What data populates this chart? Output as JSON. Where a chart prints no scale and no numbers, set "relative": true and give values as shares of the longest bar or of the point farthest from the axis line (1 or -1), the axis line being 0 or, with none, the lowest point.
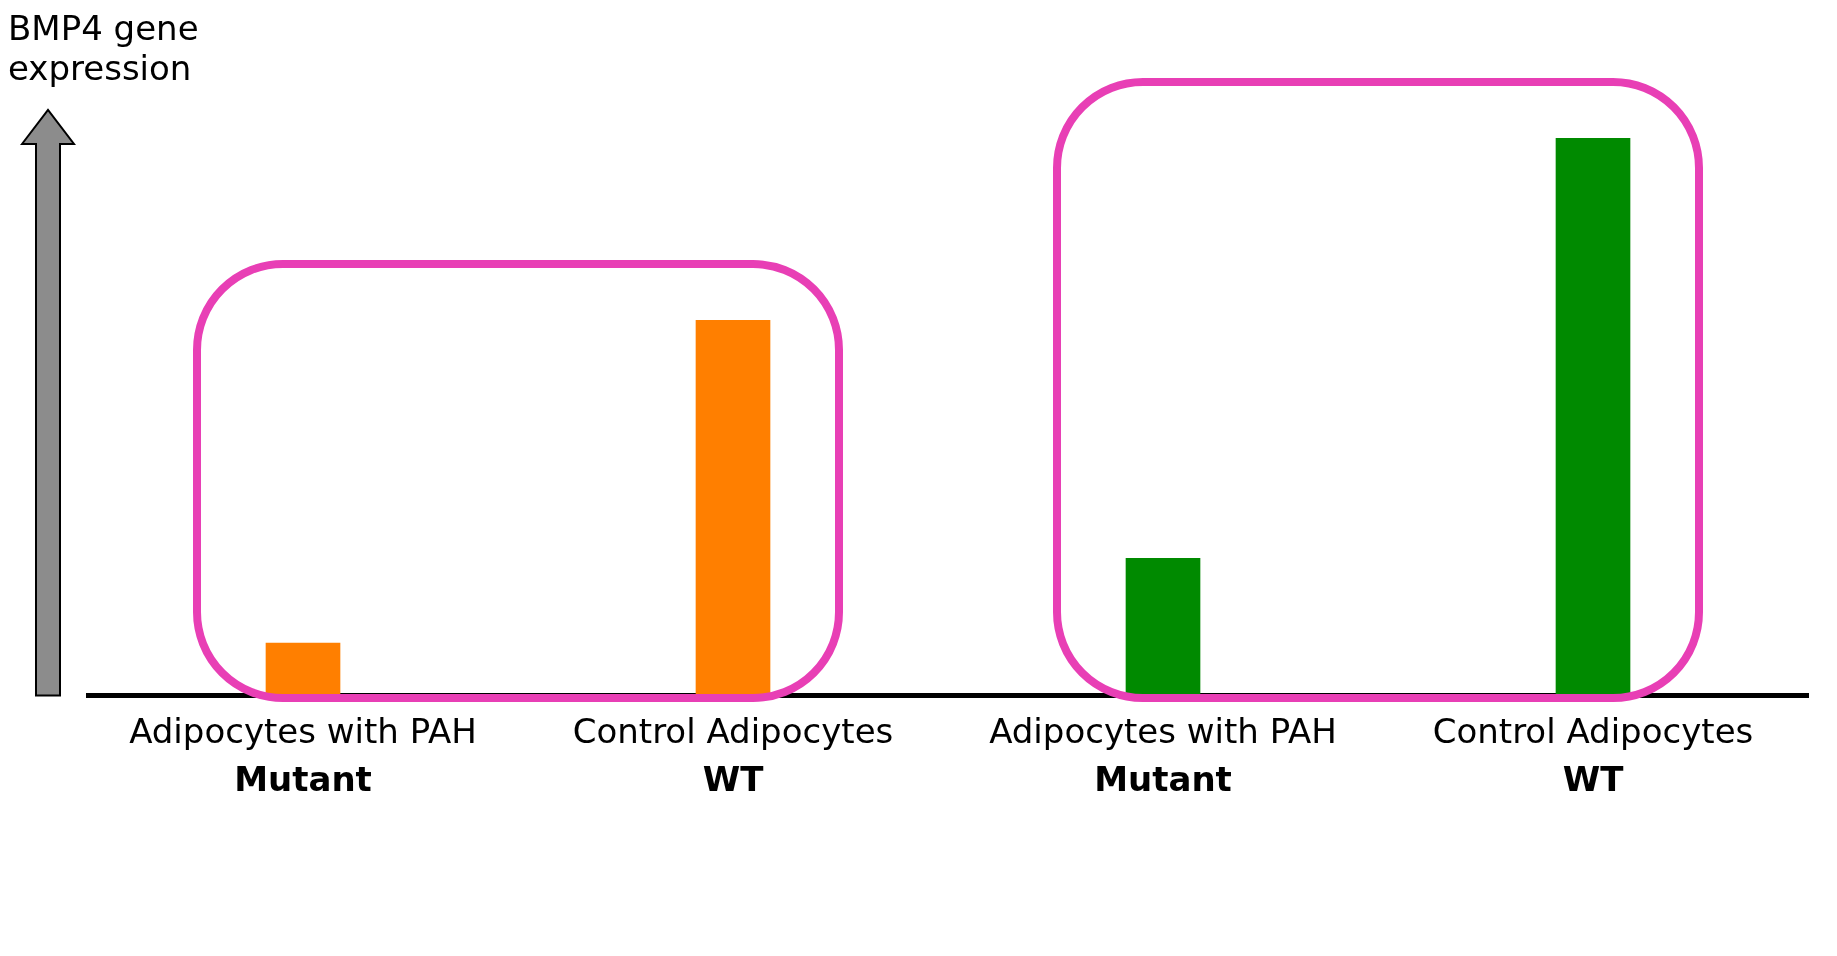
{
  "chart_data": {
    "type": "bar",
    "ylabel": "BMP4 gene expression",
    "relative": true,
    "categories": [
      "Adipocytes with PAH\nMutant",
      "Control Adipocytes\nWT",
      "Adipocytes with PAH\nMutant",
      "Control Adipocytes\nWT"
    ],
    "values": [
      0.094,
      0.673,
      0.246,
      1.0
    ],
    "colors": [
      "#ff7f00",
      "#ff7f00",
      "#008a00",
      "#008a00"
    ],
    "grid": false,
    "legend": false
  }
}
